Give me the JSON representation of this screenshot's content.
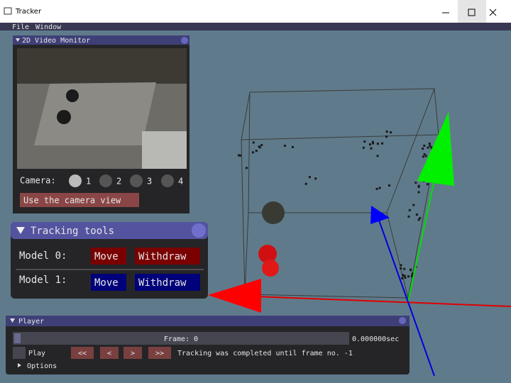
{
  "window": {
    "title": "Tracker"
  },
  "menu": [
    "File",
    "Window"
  ],
  "video_monitor": {
    "title": "2D Video Monitor",
    "camera_label": "Camera:",
    "cameras": [
      "1",
      "2",
      "3",
      "4"
    ],
    "button": "Use the camera view"
  },
  "tracking_tools": {
    "title": "Tracking tools",
    "models": [
      {
        "label": "Model 0:",
        "move": "Move",
        "withdraw": "Withdraw"
      },
      {
        "label": "Model 1:",
        "move": "Move",
        "withdraw": "Withdraw"
      }
    ]
  },
  "player": {
    "title": "Player",
    "frame": "Frame: 0",
    "time": "0.000000sec",
    "play": "Play",
    "buttons": [
      "<<",
      "<",
      ">",
      ">>"
    ],
    "status": "Tracking was completed until frame no. -1",
    "options": "Options"
  }
}
